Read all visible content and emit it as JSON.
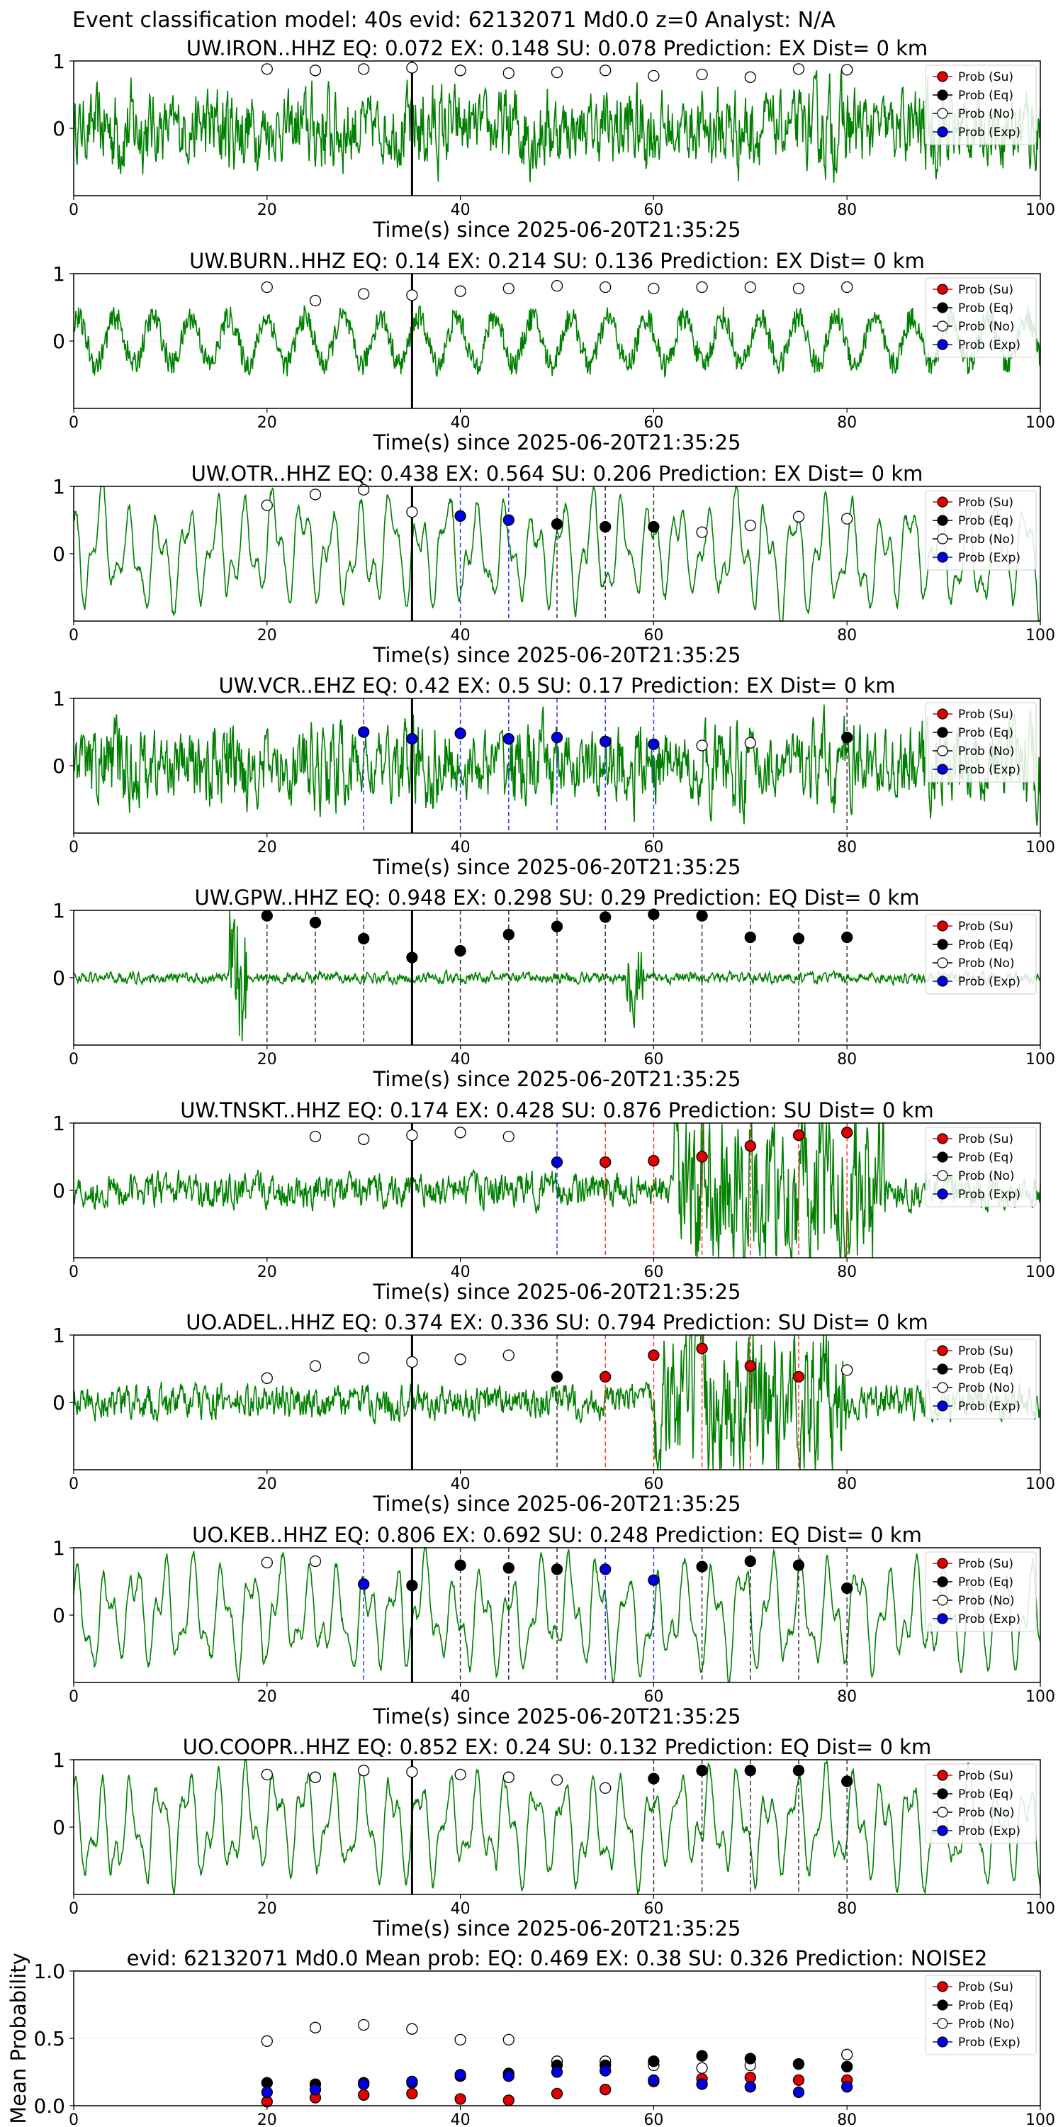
{
  "suptitle": "Event classification model: 40s evid: 62132071 Md0.0 z=0 Analyst: N/A",
  "xlabel": "Time(s) since 2025-06-20T21:35:25",
  "legend": [
    "Prob (Su)",
    "Prob (Eq)",
    "Prob (No)",
    "Prob (Exp)"
  ],
  "colors": {
    "su": "#e00000",
    "eq": "#000000",
    "no": "#ffffff",
    "exp": "#0000e0",
    "trace": "#008000"
  },
  "xticks": [
    0,
    20,
    40,
    60,
    80,
    100
  ],
  "chart_data": [
    {
      "type": "line",
      "title": "UW.IRON..HHZ   EQ: 0.072  EX: 0.148  SU: 0.078   Prediction: EX    Dist= 0 km",
      "xlim": [
        0,
        100
      ],
      "ylim": [
        -1,
        1
      ],
      "yticks": [
        0,
        1
      ],
      "trace_style": "noisy",
      "no": [
        [
          20,
          0.88
        ],
        [
          25,
          0.86
        ],
        [
          30,
          0.88
        ],
        [
          35,
          0.9
        ],
        [
          40,
          0.86
        ],
        [
          45,
          0.82
        ],
        [
          50,
          0.83
        ],
        [
          55,
          0.86
        ],
        [
          60,
          0.78
        ],
        [
          65,
          0.8
        ],
        [
          70,
          0.76
        ],
        [
          75,
          0.88
        ],
        [
          80,
          0.87
        ]
      ],
      "eq": [],
      "su": [],
      "exp": [],
      "lines": []
    },
    {
      "type": "line",
      "title": "UW.BURN..HHZ   EQ: 0.14  EX: 0.214  SU: 0.136   Prediction: EX    Dist= 0 km",
      "xlim": [
        0,
        100
      ],
      "ylim": [
        -1,
        1
      ],
      "yticks": [
        0,
        1
      ],
      "trace_style": "slow-noisy",
      "no": [
        [
          20,
          0.8
        ],
        [
          25,
          0.6
        ],
        [
          30,
          0.7
        ],
        [
          35,
          0.68
        ],
        [
          40,
          0.74
        ],
        [
          45,
          0.78
        ],
        [
          50,
          0.82
        ],
        [
          55,
          0.8
        ],
        [
          60,
          0.78
        ],
        [
          65,
          0.8
        ],
        [
          70,
          0.8
        ],
        [
          75,
          0.78
        ],
        [
          80,
          0.8
        ]
      ],
      "eq": [],
      "su": [],
      "exp": [],
      "lines": []
    },
    {
      "type": "line",
      "title": "UW.OTR..HHZ   EQ: 0.438  EX: 0.564  SU: 0.206   Prediction: EX    Dist= 0 km",
      "xlim": [
        0,
        100
      ],
      "ylim": [
        -1,
        1
      ],
      "yticks": [
        0,
        1
      ],
      "trace_style": "smooth",
      "no": [
        [
          20,
          0.72
        ],
        [
          25,
          0.88
        ],
        [
          30,
          0.95
        ],
        [
          35,
          0.62
        ],
        [
          65,
          0.32
        ],
        [
          70,
          0.42
        ],
        [
          75,
          0.55
        ],
        [
          80,
          0.52
        ]
      ],
      "eq": [
        [
          50,
          0.44
        ],
        [
          55,
          0.4
        ],
        [
          60,
          0.4
        ]
      ],
      "su": [],
      "exp": [
        [
          40,
          0.56
        ],
        [
          45,
          0.5
        ]
      ],
      "lines": [
        [
          40,
          "exp"
        ],
        [
          45,
          "exp"
        ],
        [
          50,
          "eq"
        ],
        [
          55,
          "eq"
        ],
        [
          60,
          "eq"
        ]
      ]
    },
    {
      "type": "line",
      "title": "UW.VCR..EHZ   EQ: 0.42  EX: 0.5  SU: 0.17   Prediction: EX    Dist= 0 km",
      "xlim": [
        0,
        100
      ],
      "ylim": [
        -1,
        1
      ],
      "yticks": [
        0,
        1
      ],
      "trace_style": "noisy",
      "no": [
        [
          65,
          0.3
        ],
        [
          70,
          0.34
        ]
      ],
      "eq": [
        [
          80,
          0.42
        ]
      ],
      "su": [],
      "exp": [
        [
          30,
          0.5
        ],
        [
          35,
          0.4
        ],
        [
          40,
          0.48
        ],
        [
          45,
          0.4
        ],
        [
          50,
          0.42
        ],
        [
          55,
          0.36
        ],
        [
          60,
          0.32
        ]
      ],
      "lines": [
        [
          30,
          "exp"
        ],
        [
          40,
          "exp"
        ],
        [
          45,
          "exp"
        ],
        [
          50,
          "exp"
        ],
        [
          55,
          "exp"
        ],
        [
          60,
          "exp"
        ],
        [
          80,
          "eq"
        ]
      ]
    },
    {
      "type": "line",
      "title": "UW.GPW..HHZ   EQ: 0.948  EX: 0.298  SU: 0.29   Prediction: EQ    Dist= 0 km",
      "xlim": [
        0,
        100
      ],
      "ylim": [
        -1,
        1
      ],
      "yticks": [
        0,
        1
      ],
      "trace_style": "quiet",
      "no": [],
      "eq": [
        [
          20,
          0.92
        ],
        [
          25,
          0.82
        ],
        [
          30,
          0.58
        ],
        [
          35,
          0.3
        ],
        [
          40,
          0.4
        ],
        [
          45,
          0.64
        ],
        [
          50,
          0.76
        ],
        [
          55,
          0.9
        ],
        [
          60,
          0.94
        ],
        [
          65,
          0.92
        ],
        [
          70,
          0.6
        ],
        [
          75,
          0.58
        ],
        [
          80,
          0.6
        ]
      ],
      "su": [],
      "exp": [],
      "lines": [
        [
          20,
          "eq"
        ],
        [
          25,
          "eq"
        ],
        [
          30,
          "eq"
        ],
        [
          40,
          "eq"
        ],
        [
          45,
          "eq"
        ],
        [
          50,
          "eq"
        ],
        [
          55,
          "eq"
        ],
        [
          60,
          "eq"
        ],
        [
          65,
          "eq"
        ],
        [
          70,
          "eq"
        ],
        [
          75,
          "eq"
        ],
        [
          80,
          "eq"
        ]
      ]
    },
    {
      "type": "line",
      "title": "UW.TNSKT..HHZ   EQ: 0.174  EX: 0.428  SU: 0.876   Prediction: SU    Dist= 0 km",
      "xlim": [
        0,
        100
      ],
      "ylim": [
        -1,
        1
      ],
      "yticks": [
        0,
        1
      ],
      "trace_style": "burst-late",
      "no": [
        [
          25,
          0.8
        ],
        [
          30,
          0.76
        ],
        [
          35,
          0.82
        ],
        [
          40,
          0.86
        ],
        [
          45,
          0.8
        ]
      ],
      "eq": [],
      "su": [
        [
          55,
          0.42
        ],
        [
          60,
          0.44
        ],
        [
          65,
          0.5
        ],
        [
          70,
          0.66
        ],
        [
          75,
          0.82
        ],
        [
          80,
          0.86
        ]
      ],
      "exp": [
        [
          50,
          0.42
        ]
      ],
      "lines": [
        [
          50,
          "exp"
        ],
        [
          55,
          "su"
        ],
        [
          60,
          "su"
        ],
        [
          65,
          "su"
        ],
        [
          70,
          "su"
        ],
        [
          75,
          "su"
        ],
        [
          80,
          "su"
        ]
      ]
    },
    {
      "type": "line",
      "title": "UO.ADEL..HHZ   EQ: 0.374  EX: 0.336  SU: 0.794   Prediction: SU    Dist= 0 km",
      "xlim": [
        0,
        100
      ],
      "ylim": [
        -1,
        1
      ],
      "yticks": [
        0,
        1
      ],
      "trace_style": "burst-mid",
      "no": [
        [
          20,
          0.36
        ],
        [
          25,
          0.54
        ],
        [
          30,
          0.66
        ],
        [
          35,
          0.6
        ],
        [
          40,
          0.64
        ],
        [
          45,
          0.7
        ],
        [
          80,
          0.48
        ]
      ],
      "eq": [
        [
          50,
          0.38
        ]
      ],
      "su": [
        [
          55,
          0.38
        ],
        [
          60,
          0.7
        ],
        [
          65,
          0.8
        ],
        [
          70,
          0.54
        ],
        [
          75,
          0.38
        ]
      ],
      "exp": [],
      "lines": [
        [
          50,
          "eq"
        ],
        [
          55,
          "su"
        ],
        [
          60,
          "su"
        ],
        [
          65,
          "su"
        ],
        [
          70,
          "su"
        ],
        [
          75,
          "su"
        ]
      ]
    },
    {
      "type": "line",
      "title": "UO.KEB..HHZ   EQ: 0.806  EX: 0.692  SU: 0.248   Prediction: EQ    Dist= 0 km",
      "xlim": [
        0,
        100
      ],
      "ylim": [
        -1,
        1
      ],
      "yticks": [
        0,
        1
      ],
      "trace_style": "smooth",
      "no": [
        [
          20,
          0.78
        ],
        [
          25,
          0.8
        ]
      ],
      "eq": [
        [
          35,
          0.44
        ],
        [
          40,
          0.74
        ],
        [
          45,
          0.7
        ],
        [
          50,
          0.68
        ],
        [
          65,
          0.72
        ],
        [
          70,
          0.8
        ],
        [
          75,
          0.74
        ],
        [
          80,
          0.4
        ]
      ],
      "su": [],
      "exp": [
        [
          30,
          0.46
        ],
        [
          55,
          0.68
        ],
        [
          60,
          0.52
        ]
      ],
      "lines": [
        [
          30,
          "exp"
        ],
        [
          40,
          "eq"
        ],
        [
          45,
          "eq"
        ],
        [
          50,
          "eq"
        ],
        [
          55,
          "exp"
        ],
        [
          60,
          "exp"
        ],
        [
          65,
          "eq"
        ],
        [
          70,
          "eq"
        ],
        [
          75,
          "eq"
        ],
        [
          80,
          "eq"
        ]
      ]
    },
    {
      "type": "line",
      "title": "UO.COOPR..HHZ   EQ: 0.852  EX: 0.24  SU: 0.132   Prediction: EQ    Dist= 0 km",
      "xlim": [
        0,
        100
      ],
      "ylim": [
        -1,
        1
      ],
      "yticks": [
        0,
        1
      ],
      "trace_style": "smooth",
      "no": [
        [
          20,
          0.78
        ],
        [
          25,
          0.74
        ],
        [
          30,
          0.84
        ],
        [
          35,
          0.82
        ],
        [
          40,
          0.78
        ],
        [
          45,
          0.74
        ],
        [
          50,
          0.7
        ],
        [
          55,
          0.58
        ]
      ],
      "eq": [
        [
          60,
          0.72
        ],
        [
          65,
          0.84
        ],
        [
          70,
          0.84
        ],
        [
          75,
          0.84
        ],
        [
          80,
          0.68
        ]
      ],
      "su": [],
      "exp": [],
      "lines": [
        [
          60,
          "eq"
        ],
        [
          65,
          "eq"
        ],
        [
          70,
          "eq"
        ],
        [
          75,
          "eq"
        ],
        [
          80,
          "eq"
        ]
      ]
    },
    {
      "type": "scatter",
      "title": "evid: 62132071  Md0.0   Mean prob:    EQ: 0.469  EX: 0.38  SU: 0.326   Prediction: NOISE2",
      "ylabel": "Mean Probability",
      "xlim": [
        0,
        100
      ],
      "ylim": [
        0,
        1
      ],
      "yticks": [
        0.0,
        0.5,
        1.0
      ],
      "no": [
        [
          20,
          0.48
        ],
        [
          25,
          0.58
        ],
        [
          30,
          0.6
        ],
        [
          35,
          0.57
        ],
        [
          40,
          0.49
        ],
        [
          45,
          0.49
        ],
        [
          50,
          0.33
        ],
        [
          55,
          0.33
        ],
        [
          60,
          0.3
        ],
        [
          65,
          0.28
        ],
        [
          70,
          0.3
        ],
        [
          75,
          0.31
        ],
        [
          80,
          0.38
        ]
      ],
      "eq": [
        [
          20,
          0.17
        ],
        [
          25,
          0.16
        ],
        [
          30,
          0.17
        ],
        [
          35,
          0.17
        ],
        [
          40,
          0.22
        ],
        [
          45,
          0.24
        ],
        [
          50,
          0.3
        ],
        [
          55,
          0.3
        ],
        [
          60,
          0.33
        ],
        [
          65,
          0.37
        ],
        [
          70,
          0.35
        ],
        [
          75,
          0.31
        ],
        [
          80,
          0.29
        ]
      ],
      "su": [
        [
          20,
          0.03
        ],
        [
          25,
          0.06
        ],
        [
          30,
          0.08
        ],
        [
          35,
          0.09
        ],
        [
          40,
          0.05
        ],
        [
          45,
          0.04
        ],
        [
          50,
          0.09
        ],
        [
          55,
          0.12
        ],
        [
          60,
          0.18
        ],
        [
          65,
          0.2
        ],
        [
          70,
          0.21
        ],
        [
          75,
          0.19
        ],
        [
          80,
          0.19
        ]
      ],
      "exp": [
        [
          20,
          0.1
        ],
        [
          25,
          0.12
        ],
        [
          30,
          0.16
        ],
        [
          35,
          0.18
        ],
        [
          40,
          0.23
        ],
        [
          45,
          0.22
        ],
        [
          50,
          0.25
        ],
        [
          55,
          0.26
        ],
        [
          60,
          0.19
        ],
        [
          65,
          0.16
        ],
        [
          70,
          0.14
        ],
        [
          75,
          0.1
        ],
        [
          80,
          0.14
        ]
      ],
      "lines": []
    }
  ]
}
